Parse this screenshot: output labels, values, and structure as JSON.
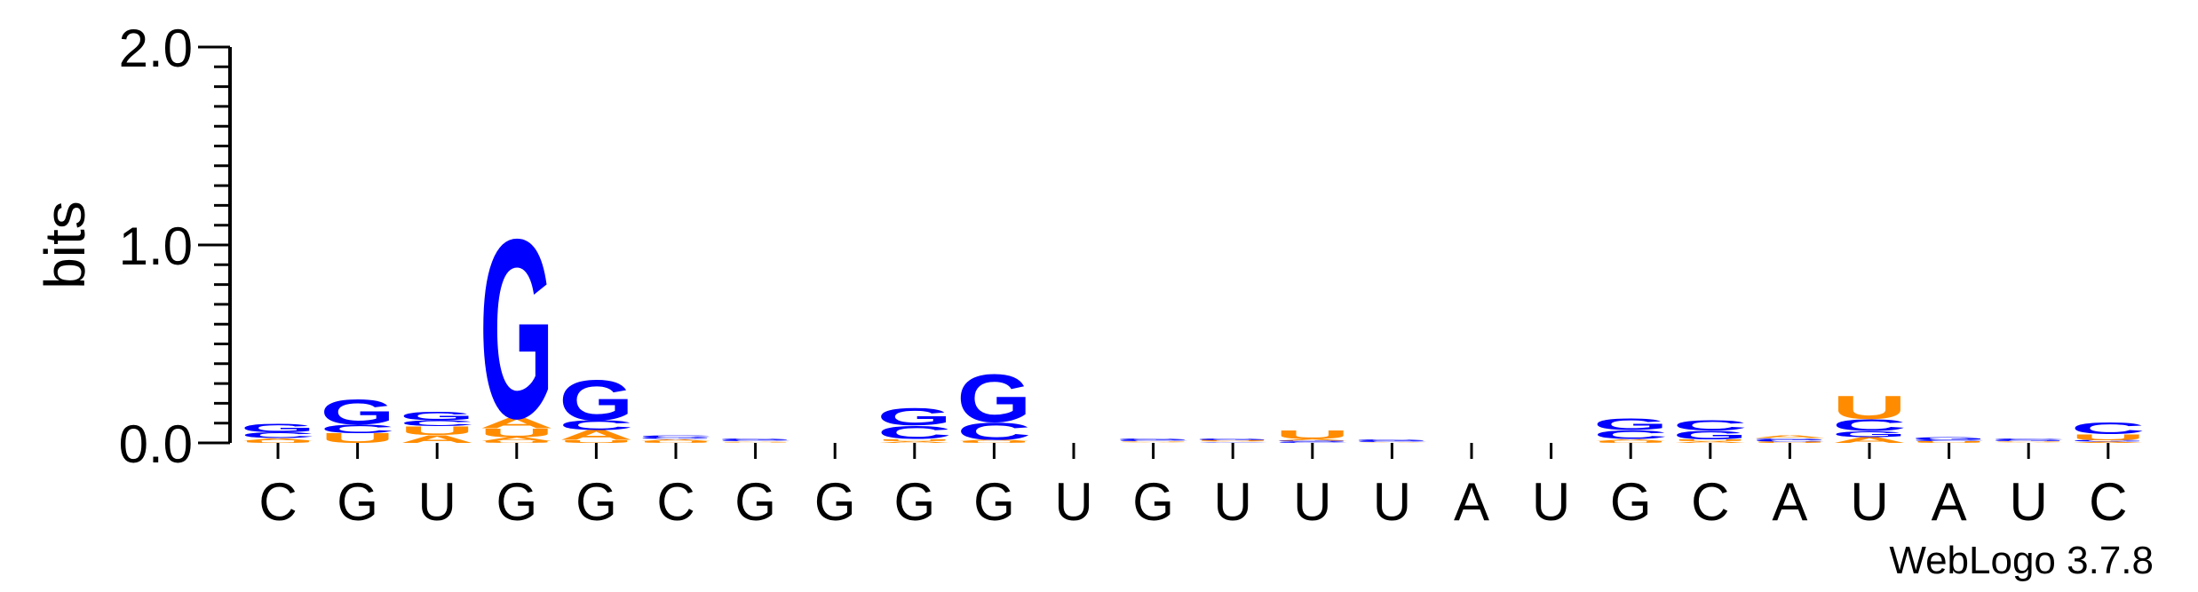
{
  "chart_data": {
    "type": "sequence-logo",
    "ylabel": "bits",
    "ylim": [
      0,
      2.0
    ],
    "yticks": [
      {
        "value": 0.0,
        "label": "0.0"
      },
      {
        "value": 1.0,
        "label": "1.0"
      },
      {
        "value": 2.0,
        "label": "2.0"
      }
    ],
    "y_minor_step": 0.1,
    "colors": {
      "A": "#ff8c00",
      "U": "#ff8c00",
      "G": "#0000ff",
      "C": "#0000ff"
    },
    "positions": [
      {
        "label": "C",
        "stack": [
          {
            "l": "U",
            "h": 0.012
          },
          {
            "l": "A",
            "h": 0.012
          },
          {
            "l": "C",
            "h": 0.03
          },
          {
            "l": "G",
            "h": 0.045
          }
        ]
      },
      {
        "label": "G",
        "stack": [
          {
            "l": "U",
            "h": 0.05
          },
          {
            "l": "C",
            "h": 0.045
          },
          {
            "l": "G",
            "h": 0.13
          }
        ]
      },
      {
        "label": "U",
        "stack": [
          {
            "l": "A",
            "h": 0.04
          },
          {
            "l": "U",
            "h": 0.045
          },
          {
            "l": "C",
            "h": 0.03
          },
          {
            "l": "G",
            "h": 0.045
          }
        ]
      },
      {
        "label": "G",
        "stack": [
          {
            "l": "U",
            "h": 0.01
          },
          {
            "l": "A",
            "h": 0.02
          },
          {
            "l": "U",
            "h": 0.045
          },
          {
            "l": "A",
            "h": 0.055
          },
          {
            "l": "G",
            "h": 0.93
          }
        ]
      },
      {
        "label": "G",
        "stack": [
          {
            "l": "U",
            "h": 0.015
          },
          {
            "l": "A",
            "h": 0.05
          },
          {
            "l": "C",
            "h": 0.05
          },
          {
            "l": "G",
            "h": 0.21
          }
        ]
      },
      {
        "label": "C",
        "stack": [
          {
            "l": "U",
            "h": 0.01
          },
          {
            "l": "A",
            "h": 0.01
          },
          {
            "l": "G",
            "h": 0.008
          },
          {
            "l": "C",
            "h": 0.012
          }
        ]
      },
      {
        "label": "G",
        "stack": [
          {
            "l": "U",
            "h": 0.004
          },
          {
            "l": "A",
            "h": 0.004
          },
          {
            "l": "C",
            "h": 0.006
          },
          {
            "l": "G",
            "h": 0.008
          }
        ]
      },
      {
        "label": "G",
        "stack": []
      },
      {
        "label": "G",
        "stack": [
          {
            "l": "A",
            "h": 0.01
          },
          {
            "l": "U",
            "h": 0.01
          },
          {
            "l": "C",
            "h": 0.07
          },
          {
            "l": "G",
            "h": 0.09
          }
        ]
      },
      {
        "label": "G",
        "stack": [
          {
            "l": "U",
            "h": 0.008
          },
          {
            "l": "A",
            "h": 0.008
          },
          {
            "l": "C",
            "h": 0.09
          },
          {
            "l": "G",
            "h": 0.25
          }
        ]
      },
      {
        "label": "U",
        "stack": []
      },
      {
        "label": "G",
        "stack": [
          {
            "l": "A",
            "h": 0.004
          },
          {
            "l": "U",
            "h": 0.004
          },
          {
            "l": "C",
            "h": 0.006
          },
          {
            "l": "G",
            "h": 0.008
          }
        ]
      },
      {
        "label": "U",
        "stack": [
          {
            "l": "C",
            "h": 0.004
          },
          {
            "l": "A",
            "h": 0.004
          },
          {
            "l": "U",
            "h": 0.006
          },
          {
            "l": "G",
            "h": 0.008
          }
        ]
      },
      {
        "label": "U",
        "stack": [
          {
            "l": "C",
            "h": 0.006
          },
          {
            "l": "G",
            "h": 0.006
          },
          {
            "l": "A",
            "h": 0.008
          },
          {
            "l": "U",
            "h": 0.045
          }
        ]
      },
      {
        "label": "U",
        "stack": [
          {
            "l": "A",
            "h": 0.004
          },
          {
            "l": "C",
            "h": 0.006
          },
          {
            "l": "G",
            "h": 0.01
          }
        ]
      },
      {
        "label": "A",
        "stack": []
      },
      {
        "label": "U",
        "stack": []
      },
      {
        "label": "G",
        "stack": [
          {
            "l": "U",
            "h": 0.01
          },
          {
            "l": "A",
            "h": 0.01
          },
          {
            "l": "C",
            "h": 0.045
          },
          {
            "l": "G",
            "h": 0.06
          }
        ]
      },
      {
        "label": "C",
        "stack": [
          {
            "l": "A",
            "h": 0.008
          },
          {
            "l": "U",
            "h": 0.01
          },
          {
            "l": "G",
            "h": 0.045
          },
          {
            "l": "C",
            "h": 0.055
          }
        ]
      },
      {
        "label": "A",
        "stack": [
          {
            "l": "U",
            "h": 0.006
          },
          {
            "l": "C",
            "h": 0.008
          },
          {
            "l": "G",
            "h": 0.01
          },
          {
            "l": "A",
            "h": 0.015
          }
        ]
      },
      {
        "label": "U",
        "stack": [
          {
            "l": "A",
            "h": 0.03
          },
          {
            "l": "G",
            "h": 0.03
          },
          {
            "l": "C",
            "h": 0.06
          },
          {
            "l": "U",
            "h": 0.12
          }
        ]
      },
      {
        "label": "A",
        "stack": [
          {
            "l": "U",
            "h": 0.008
          },
          {
            "l": "C",
            "h": 0.008
          },
          {
            "l": "G",
            "h": 0.015
          }
        ]
      },
      {
        "label": "U",
        "stack": [
          {
            "l": "A",
            "h": 0.004
          },
          {
            "l": "U",
            "h": 0.004
          },
          {
            "l": "G",
            "h": 0.006
          },
          {
            "l": "C",
            "h": 0.008
          }
        ]
      },
      {
        "label": "C",
        "stack": [
          {
            "l": "A",
            "h": 0.006
          },
          {
            "l": "G",
            "h": 0.008
          },
          {
            "l": "U",
            "h": 0.03
          },
          {
            "l": "C",
            "h": 0.06
          }
        ]
      }
    ]
  },
  "footer": {
    "text": "WebLogo 3.7.8"
  }
}
